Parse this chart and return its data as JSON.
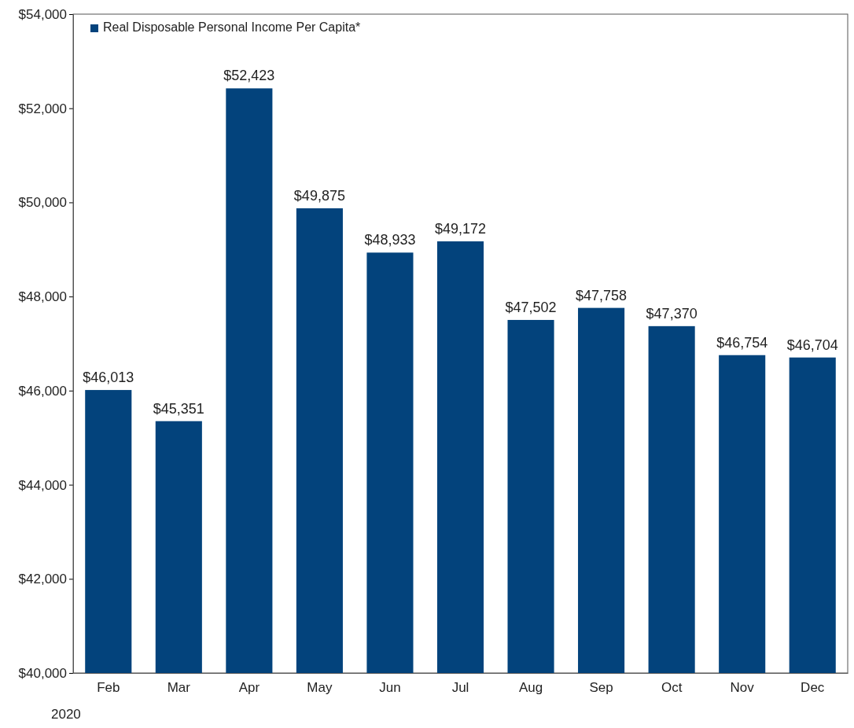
{
  "chart_data": {
    "type": "bar",
    "categories": [
      "Feb",
      "Mar",
      "Apr",
      "May",
      "Jun",
      "Jul",
      "Aug",
      "Sep",
      "Oct",
      "Nov",
      "Dec"
    ],
    "series": [
      {
        "name": "Real Disposable Personal Income Per Capita*",
        "color": "#03437c",
        "values": [
          46013,
          45351,
          52423,
          49875,
          48933,
          49172,
          47502,
          47758,
          47370,
          46754,
          46704
        ],
        "value_labels": [
          "$46,013",
          "$45,351",
          "$52,423",
          "$49,875",
          "$48,933",
          "$49,172",
          "$47,502",
          "$47,758",
          "$47,370",
          "$46,754",
          "$46,704"
        ]
      }
    ],
    "ylim": [
      40000,
      54000
    ],
    "yticks": [
      {
        "value": 40000,
        "label": "$40,000"
      },
      {
        "value": 42000,
        "label": "$42,000"
      },
      {
        "value": 44000,
        "label": "$44,000"
      },
      {
        "value": 46000,
        "label": "$46,000"
      },
      {
        "value": 48000,
        "label": "$48,000"
      },
      {
        "value": 50000,
        "label": "$50,000"
      },
      {
        "value": 52000,
        "label": "$52,000"
      },
      {
        "value": 54000,
        "label": "$54,000"
      }
    ],
    "grid": false,
    "legend": "top left",
    "annotations": [
      "2020"
    ]
  }
}
